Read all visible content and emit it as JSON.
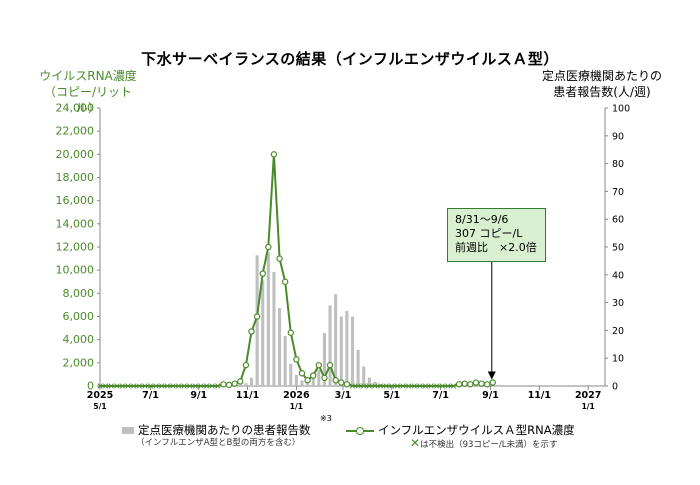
{
  "header": {
    "title": "下水サーベイランスの結果（インフルエンザウイルスＡ型）",
    "left_axis_title_line1": "ウイルスRNA濃度",
    "left_axis_title_line2": "（コピー/リットル）",
    "right_axis_title_line1": "定点医療機関あたりの",
    "right_axis_title_line2": "患者報告数(人/週)"
  },
  "colors": {
    "line": "#4a8a2a",
    "bar": "#bfbfbf",
    "callout_fill": "#d8f0cf"
  },
  "callout": {
    "line1": "8/31～9/6",
    "line2": "307 コピー/L",
    "line3": "前週比　×2.0倍"
  },
  "legend": {
    "bar_label": "定点医療機関あたりの患者報告数",
    "bar_note_mark": "※3",
    "bar_sub": "（インフルエンザA型とB型の両方を含む）",
    "line_label": "インフルエンザウイルスＡ型RNA濃度",
    "line_sub_mark": "✕",
    "line_sub": "は不検出（93コピー/L未満）を示す"
  },
  "chart_data": {
    "type": "bar+line",
    "title": "下水サーベイランスの結果（インフルエンザウイルスＡ型）",
    "x_ticks": [
      {
        "week": 0,
        "label": "2025",
        "label2": "5/1"
      },
      {
        "week": 9,
        "label": "7/1",
        "label2": ""
      },
      {
        "week": 17.6,
        "label": "9/1",
        "label2": ""
      },
      {
        "week": 26.3,
        "label": "11/1",
        "label2": ""
      },
      {
        "week": 35,
        "label": "2026",
        "label2": "1/1"
      },
      {
        "week": 43.3,
        "label": "3/1",
        "label2": ""
      },
      {
        "week": 52,
        "label": "5/1",
        "label2": ""
      },
      {
        "week": 60.7,
        "label": "7/1",
        "label2": ""
      },
      {
        "week": 69.6,
        "label": "9/1",
        "label2": ""
      },
      {
        "week": 78.3,
        "label": "11/1",
        "label2": ""
      },
      {
        "week": 87,
        "label": "2027",
        "label2": "1/1"
      }
    ],
    "x_range": [
      0,
      90
    ],
    "y_left": {
      "min": 0,
      "max": 24000,
      "step": 2000,
      "tick_labels": [
        "0",
        "2,000",
        "4,000",
        "6,000",
        "8,000",
        "10,000",
        "12,000",
        "14,000",
        "16,000",
        "18,000",
        "20,000",
        "22,000",
        "24,000"
      ]
    },
    "y_right": {
      "min": 0,
      "max": 100,
      "step": 10,
      "tick_labels": [
        "0",
        "10",
        "20",
        "30",
        "40",
        "50",
        "60",
        "70",
        "80",
        "90",
        "100"
      ]
    },
    "bars_series": {
      "name": "定点医療機関あたりの患者報告数",
      "weeks": [
        22,
        23,
        24,
        25,
        26,
        27,
        28,
        29,
        30,
        31,
        32,
        33,
        34,
        35,
        36,
        37,
        38,
        39,
        40,
        41,
        42,
        43,
        44,
        45,
        46,
        47,
        48,
        49,
        50,
        51,
        52,
        53,
        54,
        55,
        56,
        57,
        58
      ],
      "values": [
        0.1,
        0.2,
        0.3,
        0.6,
        1,
        3,
        47,
        38,
        48,
        41,
        28,
        18,
        8,
        4,
        2,
        1,
        3,
        6,
        19,
        29,
        33,
        25,
        27,
        25,
        13,
        7,
        3,
        1.5,
        0.7,
        0.5,
        0.3,
        0.2,
        0.2,
        0.1,
        0.1,
        0.1,
        0.1
      ]
    },
    "line_series": {
      "name": "インフルエンザウイルスＡ型RNA濃度",
      "weeks": [
        0,
        1,
        2,
        3,
        4,
        5,
        6,
        7,
        8,
        9,
        10,
        11,
        12,
        13,
        14,
        15,
        16,
        17,
        18,
        19,
        20,
        21,
        22,
        23,
        24,
        25,
        26,
        27,
        28,
        29,
        30,
        31,
        32,
        33,
        34,
        35,
        36,
        37,
        38,
        39,
        40,
        41,
        42,
        43,
        44,
        45,
        46,
        47,
        48,
        49,
        50,
        51,
        52,
        53,
        54,
        55,
        56,
        57,
        58,
        59,
        60,
        61,
        62,
        63,
        64,
        65,
        66,
        67,
        68,
        69,
        70
      ],
      "values": [
        0,
        0,
        0,
        0,
        0,
        0,
        0,
        0,
        0,
        0,
        0,
        0,
        0,
        0,
        0,
        0,
        0,
        0,
        0,
        0,
        0,
        0,
        150,
        100,
        200,
        400,
        1800,
        4700,
        6000,
        9700,
        12000,
        20000,
        11000,
        9000,
        4600,
        2300,
        1100,
        500,
        900,
        1800,
        700,
        1800,
        500,
        300,
        150,
        0,
        0,
        0,
        0,
        0,
        0,
        0,
        0,
        0,
        0,
        0,
        0,
        0,
        0,
        0,
        0,
        0,
        0,
        0,
        150,
        200,
        150,
        300,
        200,
        150,
        307
      ],
      "not_detected_marker_weeks": [
        0,
        1,
        2,
        3,
        4,
        5,
        6,
        7,
        8,
        9,
        10,
        11,
        12,
        13,
        14,
        15,
        16,
        17,
        18,
        19,
        20,
        21,
        45,
        46,
        47,
        48,
        49,
        50,
        51,
        52,
        53,
        54,
        55,
        56,
        57,
        58,
        59,
        60,
        61,
        62,
        63
      ]
    }
  }
}
